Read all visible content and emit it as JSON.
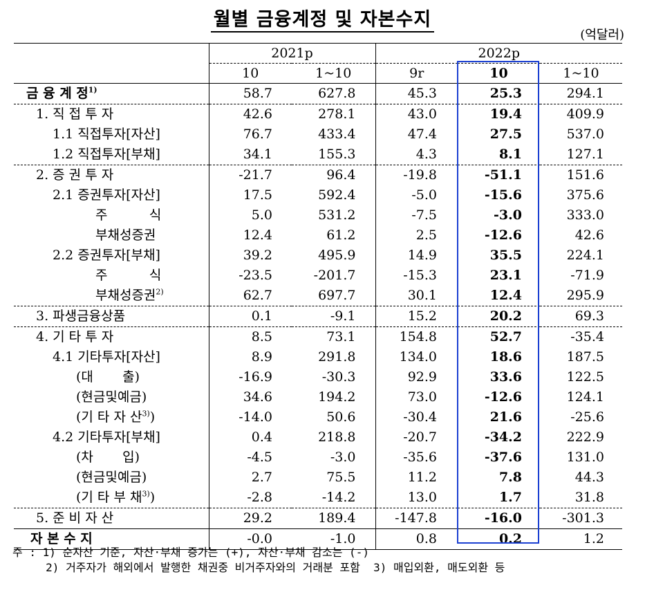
{
  "title": "월별 금융계정 및 자본수지",
  "unit": "(억달러)",
  "header": {
    "group1": "2021p",
    "group2": "2022p",
    "cols": [
      "10",
      "1~10",
      "9r",
      "10",
      "1~10"
    ]
  },
  "rows": [
    {
      "label": "금 융 계 정",
      "sup": "1)",
      "v": [
        "58.7",
        "627.8",
        "45.3",
        "25.3",
        "294.1"
      ]
    },
    {
      "label": "1. 직 접 투 자",
      "v": [
        "42.6",
        "278.1",
        "43.0",
        "19.4",
        "409.9"
      ]
    },
    {
      "label": "1.1 직접투자[자산]",
      "v": [
        "76.7",
        "433.4",
        "47.4",
        "27.5",
        "537.0"
      ]
    },
    {
      "label": "1.2 직접투자[부채]",
      "v": [
        "34.1",
        "155.3",
        "4.3",
        "8.1",
        "127.1"
      ]
    },
    {
      "label": "2. 증 권 투 자",
      "v": [
        "-21.7",
        "96.4",
        "-19.8",
        "-51.1",
        "151.6"
      ]
    },
    {
      "label": "2.1 증권투자[자산]",
      "v": [
        "17.5",
        "592.4",
        "-5.0",
        "-15.6",
        "375.6"
      ]
    },
    {
      "label": "주          식",
      "v": [
        "5.0",
        "531.2",
        "-7.5",
        "-3.0",
        "333.0"
      ]
    },
    {
      "label": "부채성증권",
      "v": [
        "12.4",
        "61.2",
        "2.5",
        "-12.6",
        "42.6"
      ]
    },
    {
      "label": "2.2 증권투자[부채]",
      "v": [
        "39.2",
        "495.9",
        "14.9",
        "35.5",
        "224.1"
      ]
    },
    {
      "label": "주          식",
      "v": [
        "-23.5",
        "-201.7",
        "-15.3",
        "23.1",
        "-71.9"
      ]
    },
    {
      "label": "부채성증권",
      "sup": "2)",
      "v": [
        "62.7",
        "697.7",
        "30.1",
        "12.4",
        "295.9"
      ]
    },
    {
      "label": "3. 파생금융상품",
      "v": [
        "0.1",
        "-9.1",
        "15.2",
        "20.2",
        "69.3"
      ]
    },
    {
      "label": "4. 기 타 투 자",
      "v": [
        "8.5",
        "73.1",
        "154.8",
        "52.7",
        "-35.4"
      ]
    },
    {
      "label": "4.1 기타투자[자산]",
      "v": [
        "8.9",
        "291.8",
        "134.0",
        "18.6",
        "187.5"
      ]
    },
    {
      "label": "(대       출)",
      "v": [
        "-16.9",
        "-30.3",
        "92.9",
        "33.6",
        "122.5"
      ]
    },
    {
      "label": "(현금및예금)",
      "v": [
        "34.6",
        "194.2",
        "73.0",
        "-12.6",
        "124.1"
      ]
    },
    {
      "label": "(기 타 자 산",
      "sup": "3)",
      "close": ")",
      "v": [
        "-14.0",
        "50.6",
        "-30.4",
        "21.6",
        "-25.6"
      ]
    },
    {
      "label": "4.2 기타투자[부채]",
      "v": [
        "0.4",
        "218.8",
        "-20.7",
        "-34.2",
        "222.9"
      ]
    },
    {
      "label": "(차       입)",
      "v": [
        "-4.5",
        "-3.0",
        "-35.6",
        "-37.6",
        "131.0"
      ]
    },
    {
      "label": "(현금및예금)",
      "v": [
        "2.7",
        "75.5",
        "11.2",
        "7.8",
        "44.3"
      ]
    },
    {
      "label": "(기 타 부 채",
      "sup": "3)",
      "close": ")",
      "v": [
        "-2.8",
        "-14.2",
        "13.0",
        "1.7",
        "31.8"
      ]
    },
    {
      "label": "5. 준 비 자 산",
      "v": [
        "29.2",
        "189.4",
        "-147.8",
        "-16.0",
        "-301.3"
      ]
    },
    {
      "label": "자 본 수 지",
      "v": [
        "-0.0",
        "-1.0",
        "0.8",
        "0.2",
        "1.2"
      ]
    }
  ],
  "notes": {
    "line1": "주 : 1) 순자산 기준, 자산·부채 증가는 (+), 자산·부채 감소는 (-)",
    "line2": "     2) 거주자가 해외에서 발행한 채권중 비거주자와의 거래분 포함  3) 매입외환, 매도외환 등"
  }
}
